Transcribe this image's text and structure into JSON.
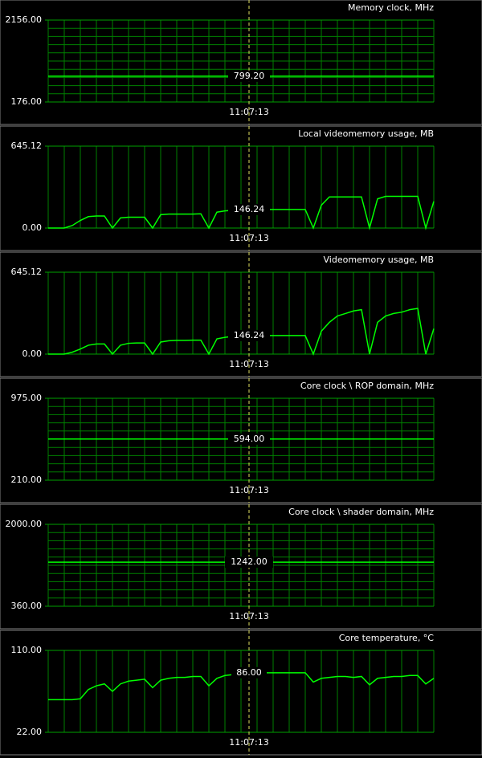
{
  "chart_data": [
    {
      "type": "line",
      "title": "Memory clock, MHz",
      "grid": "both",
      "current_value": "799.20",
      "ylim": [
        176,
        2156
      ],
      "yticks": [
        {
          "value": 176,
          "label": "176.00"
        },
        {
          "value": 2156,
          "label": "2156.00"
        }
      ],
      "categories": [
        null,
        null,
        null,
        null,
        null,
        null,
        null,
        null,
        null,
        null,
        null,
        null,
        null,
        null,
        null,
        null,
        null,
        null,
        null,
        null,
        null,
        null,
        null,
        null,
        null,
        "11:07:13",
        null,
        null,
        null,
        null,
        null,
        null,
        null,
        null,
        null,
        null,
        null,
        null,
        null,
        null,
        null,
        null,
        null,
        null,
        null,
        null,
        null,
        null,
        null
      ],
      "series": [
        {
          "color": "#00ff00",
          "values": [
            799.2,
            799.2,
            799.2,
            799.2,
            799.2,
            799.2,
            799.2,
            799.2,
            799.2,
            799.2,
            799.2,
            799.2,
            799.2,
            799.2,
            799.2,
            799.2,
            799.2,
            799.2,
            799.2,
            799.2,
            799.2,
            799.2,
            799.2,
            799.2,
            799.2,
            799.2,
            799.2,
            799.2,
            799.2,
            799.2,
            799.2,
            799.2,
            799.2,
            799.2,
            799.2,
            799.2,
            799.2,
            799.2,
            799.2,
            799.2,
            799.2,
            799.2,
            799.2,
            799.2,
            799.2,
            799.2,
            799.2,
            799.2,
            799.2
          ]
        }
      ]
    },
    {
      "type": "line",
      "title": "Local videomemory usage, MB",
      "grid": "x",
      "current_value": "146.24",
      "ylim": [
        0,
        645.12
      ],
      "yticks": [
        {
          "value": 0,
          "label": "0.00"
        },
        {
          "value": 645.12,
          "label": "645.12"
        }
      ],
      "categories": [
        null,
        null,
        null,
        null,
        null,
        null,
        null,
        null,
        null,
        null,
        null,
        null,
        null,
        null,
        null,
        null,
        null,
        null,
        null,
        null,
        null,
        null,
        null,
        null,
        null,
        "11:07:13",
        null,
        null,
        null,
        null,
        null,
        null,
        null,
        null,
        null,
        null,
        null,
        null,
        null,
        null,
        null,
        null,
        null,
        null,
        null,
        null,
        null,
        null,
        null
      ],
      "series": [
        {
          "color": "#00ff00",
          "values": [
            0,
            0,
            0,
            20,
            60,
            90,
            95,
            95,
            0,
            80,
            85,
            85,
            85,
            0,
            105,
            110,
            110,
            110,
            110,
            112,
            0,
            125,
            135,
            140,
            146,
            146,
            146,
            146,
            146,
            146,
            146,
            146,
            146,
            0,
            180,
            245,
            245,
            245,
            245,
            245,
            0,
            230,
            250,
            250,
            250,
            250,
            250,
            0,
            210
          ]
        }
      ]
    },
    {
      "type": "line",
      "title": "Videomemory usage, MB",
      "grid": "x",
      "current_value": "146.24",
      "ylim": [
        0,
        645.12
      ],
      "yticks": [
        {
          "value": 0,
          "label": "0.00"
        },
        {
          "value": 645.12,
          "label": "645.12"
        }
      ],
      "categories": [
        null,
        null,
        null,
        null,
        null,
        null,
        null,
        null,
        null,
        null,
        null,
        null,
        null,
        null,
        null,
        null,
        null,
        null,
        null,
        null,
        null,
        null,
        null,
        null,
        null,
        "11:07:13",
        null,
        null,
        null,
        null,
        null,
        null,
        null,
        null,
        null,
        null,
        null,
        null,
        null,
        null,
        null,
        null,
        null,
        null,
        null,
        null,
        null,
        null,
        null
      ],
      "series": [
        {
          "color": "#00ff00",
          "values": [
            0,
            0,
            0,
            15,
            40,
            70,
            80,
            80,
            0,
            70,
            85,
            88,
            88,
            0,
            95,
            105,
            108,
            108,
            110,
            110,
            0,
            120,
            132,
            140,
            146,
            146,
            146,
            146,
            146,
            146,
            146,
            146,
            146,
            0,
            180,
            250,
            300,
            320,
            340,
            350,
            0,
            250,
            300,
            320,
            330,
            350,
            360,
            0,
            200
          ]
        }
      ]
    },
    {
      "type": "line",
      "title": "Core clock \\ ROP domain, MHz",
      "grid": "both",
      "current_value": "594.00",
      "ylim": [
        210,
        975
      ],
      "yticks": [
        {
          "value": 210,
          "label": "210.00"
        },
        {
          "value": 975,
          "label": "975.00"
        }
      ],
      "categories": [
        null,
        null,
        null,
        null,
        null,
        null,
        null,
        null,
        null,
        null,
        null,
        null,
        null,
        null,
        null,
        null,
        null,
        null,
        null,
        null,
        null,
        null,
        null,
        null,
        null,
        "11:07:13",
        null,
        null,
        null,
        null,
        null,
        null,
        null,
        null,
        null,
        null,
        null,
        null,
        null,
        null,
        null,
        null,
        null,
        null,
        null,
        null,
        null,
        null,
        null
      ],
      "series": [
        {
          "color": "#00ff00",
          "values": [
            594,
            594,
            594,
            594,
            594,
            594,
            594,
            594,
            594,
            594,
            594,
            594,
            594,
            594,
            594,
            594,
            594,
            594,
            594,
            594,
            594,
            594,
            594,
            594,
            594,
            594,
            594,
            594,
            594,
            594,
            594,
            594,
            594,
            594,
            594,
            594,
            594,
            594,
            594,
            594,
            594,
            594,
            594,
            594,
            594,
            594,
            594,
            594,
            594
          ]
        }
      ]
    },
    {
      "type": "line",
      "title": "Core clock \\ shader domain, MHz",
      "grid": "both",
      "current_value": "1242.00",
      "ylim": [
        360,
        2000
      ],
      "yticks": [
        {
          "value": 360,
          "label": "360.00"
        },
        {
          "value": 2000,
          "label": "2000.00"
        }
      ],
      "categories": [
        null,
        null,
        null,
        null,
        null,
        null,
        null,
        null,
        null,
        null,
        null,
        null,
        null,
        null,
        null,
        null,
        null,
        null,
        null,
        null,
        null,
        null,
        null,
        null,
        null,
        "11:07:13",
        null,
        null,
        null,
        null,
        null,
        null,
        null,
        null,
        null,
        null,
        null,
        null,
        null,
        null,
        null,
        null,
        null,
        null,
        null,
        null,
        null,
        null,
        null
      ],
      "series": [
        {
          "color": "#00ff00",
          "values": [
            1242,
            1242,
            1242,
            1242,
            1242,
            1242,
            1242,
            1242,
            1242,
            1242,
            1242,
            1242,
            1242,
            1242,
            1242,
            1242,
            1242,
            1242,
            1242,
            1242,
            1242,
            1242,
            1242,
            1242,
            1242,
            1242,
            1242,
            1242,
            1242,
            1242,
            1242,
            1242,
            1242,
            1242,
            1242,
            1242,
            1242,
            1242,
            1242,
            1242,
            1242,
            1242,
            1242,
            1242,
            1242,
            1242,
            1242,
            1242,
            1242
          ]
        }
      ]
    },
    {
      "type": "line",
      "title": "Core temperature, °C",
      "grid": "x",
      "current_value": "86.00",
      "ylim": [
        22,
        110
      ],
      "yticks": [
        {
          "value": 22,
          "label": "22.00"
        },
        {
          "value": 110,
          "label": "110.00"
        }
      ],
      "categories": [
        null,
        null,
        null,
        null,
        null,
        null,
        null,
        null,
        null,
        null,
        null,
        null,
        null,
        null,
        null,
        null,
        null,
        null,
        null,
        null,
        null,
        null,
        null,
        null,
        null,
        "11:07:13",
        null,
        null,
        null,
        null,
        null,
        null,
        null,
        null,
        null,
        null,
        null,
        null,
        null,
        null,
        null,
        null,
        null,
        null,
        null,
        null,
        null,
        null,
        null
      ],
      "series": [
        {
          "color": "#00ff00",
          "values": [
            57,
            57,
            57,
            57,
            58,
            68,
            72,
            74,
            66,
            74,
            77,
            78,
            79,
            70,
            78,
            80,
            81,
            81,
            82,
            82,
            72,
            80,
            83,
            84,
            86,
            86,
            86,
            86,
            86,
            86,
            86,
            86,
            86,
            76,
            80,
            81,
            82,
            82,
            81,
            82,
            73,
            80,
            81,
            82,
            82,
            83,
            83,
            74,
            80
          ]
        }
      ]
    }
  ]
}
